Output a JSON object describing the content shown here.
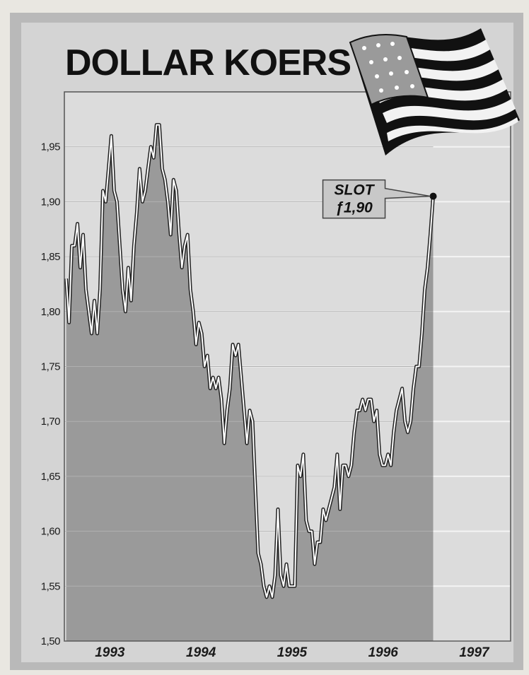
{
  "chart_data": {
    "type": "area",
    "title": "DOLLAR KOERS",
    "annotation": [
      "SLOT",
      "ƒ1,90"
    ],
    "line_color": "#ffffff",
    "fill_color": "#9a9a9a",
    "background_color": "#dcdcdc",
    "grid": true,
    "ylim": [
      1.5,
      2.0
    ],
    "yticks": [
      {
        "value": 1.5,
        "label": "1,50"
      },
      {
        "value": 1.55,
        "label": "1,55"
      },
      {
        "value": 1.6,
        "label": "1,60"
      },
      {
        "value": 1.65,
        "label": "1,65"
      },
      {
        "value": 1.7,
        "label": "1,70"
      },
      {
        "value": 1.75,
        "label": "1,75"
      },
      {
        "value": 1.8,
        "label": "1,80"
      },
      {
        "value": 1.85,
        "label": "1,85"
      },
      {
        "value": 1.9,
        "label": "1,90"
      },
      {
        "value": 1.95,
        "label": "1,95"
      }
    ],
    "xlim": [
      1993,
      1997.9
    ],
    "xticks": [
      {
        "value": 1993.5,
        "label": "1993"
      },
      {
        "value": 1994.5,
        "label": "1994"
      },
      {
        "value": 1995.5,
        "label": "1995"
      },
      {
        "value": 1996.5,
        "label": "1996"
      },
      {
        "value": 1997.5,
        "label": "1997"
      }
    ],
    "x": [
      1993.02,
      1993.051,
      1993.082,
      1993.113,
      1993.144,
      1993.175,
      1993.206,
      1993.237,
      1993.268,
      1993.299,
      1993.33,
      1993.361,
      1993.392,
      1993.423,
      1993.454,
      1993.485,
      1993.516,
      1993.547,
      1993.578,
      1993.609,
      1993.64,
      1993.671,
      1993.702,
      1993.733,
      1993.764,
      1993.795,
      1993.826,
      1993.857,
      1993.888,
      1993.919,
      1993.95,
      1993.981,
      1994.012,
      1994.043,
      1994.074,
      1994.105,
      1994.136,
      1994.167,
      1994.198,
      1994.229,
      1994.26,
      1994.291,
      1994.322,
      1994.353,
      1994.384,
      1994.415,
      1994.446,
      1994.477,
      1994.508,
      1994.539,
      1994.57,
      1994.601,
      1994.632,
      1994.663,
      1994.694,
      1994.725,
      1994.756,
      1994.787,
      1994.818,
      1994.849,
      1994.88,
      1994.911,
      1994.942,
      1994.973,
      1995.004,
      1995.035,
      1995.066,
      1995.097,
      1995.128,
      1995.159,
      1995.19,
      1995.221,
      1995.252,
      1995.283,
      1995.314,
      1995.345,
      1995.376,
      1995.407,
      1995.438,
      1995.469,
      1995.5,
      1995.531,
      1995.562,
      1995.593,
      1995.624,
      1995.655,
      1995.686,
      1995.717,
      1995.748,
      1995.779,
      1995.81,
      1995.841,
      1995.872,
      1995.903,
      1995.934,
      1995.965,
      1995.996,
      1996.027,
      1996.058,
      1996.089,
      1996.12,
      1996.151,
      1996.182,
      1996.213,
      1996.244,
      1996.275,
      1996.306,
      1996.337,
      1996.368,
      1996.399,
      1996.43,
      1996.461,
      1996.492,
      1996.523,
      1996.554,
      1996.585,
      1996.616,
      1996.647,
      1996.678,
      1996.709,
      1996.74,
      1996.771,
      1996.802,
      1996.833,
      1996.864,
      1996.895,
      1996.926,
      1996.957,
      1996.988,
      1997.019,
      1997.05
    ],
    "values": [
      1.83,
      1.79,
      1.86,
      1.86,
      1.88,
      1.84,
      1.87,
      1.82,
      1.8,
      1.78,
      1.81,
      1.78,
      1.82,
      1.91,
      1.9,
      1.93,
      1.96,
      1.91,
      1.9,
      1.86,
      1.82,
      1.8,
      1.84,
      1.81,
      1.86,
      1.89,
      1.93,
      1.9,
      1.91,
      1.93,
      1.95,
      1.94,
      1.97,
      1.97,
      1.93,
      1.92,
      1.9,
      1.87,
      1.92,
      1.91,
      1.87,
      1.84,
      1.86,
      1.87,
      1.82,
      1.8,
      1.77,
      1.79,
      1.78,
      1.75,
      1.76,
      1.73,
      1.74,
      1.73,
      1.74,
      1.72,
      1.68,
      1.71,
      1.73,
      1.77,
      1.76,
      1.77,
      1.74,
      1.71,
      1.68,
      1.71,
      1.7,
      1.64,
      1.58,
      1.57,
      1.55,
      1.54,
      1.55,
      1.54,
      1.56,
      1.62,
      1.56,
      1.55,
      1.57,
      1.55,
      1.55,
      1.55,
      1.66,
      1.65,
      1.67,
      1.61,
      1.6,
      1.6,
      1.57,
      1.59,
      1.59,
      1.62,
      1.61,
      1.62,
      1.63,
      1.64,
      1.67,
      1.62,
      1.66,
      1.66,
      1.65,
      1.66,
      1.69,
      1.71,
      1.71,
      1.72,
      1.71,
      1.72,
      1.72,
      1.7,
      1.71,
      1.67,
      1.66,
      1.66,
      1.67,
      1.66,
      1.69,
      1.71,
      1.72,
      1.73,
      1.7,
      1.69,
      1.7,
      1.73,
      1.75,
      1.75,
      1.78,
      1.82,
      1.84,
      1.87,
      1.905
    ]
  }
}
